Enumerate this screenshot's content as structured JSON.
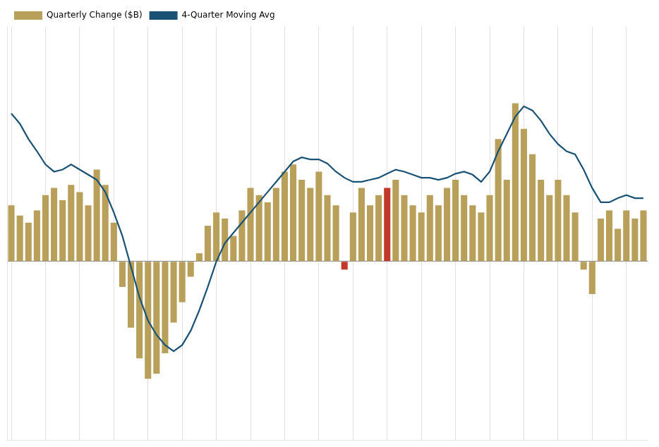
{
  "chart_data": {
    "type": "bar",
    "categories": [
      null,
      null,
      null,
      null,
      null,
      null,
      null,
      null,
      null,
      null,
      null,
      null,
      null,
      null,
      null,
      null,
      null,
      null,
      null,
      null,
      null,
      null,
      null,
      null,
      null,
      null,
      null,
      null,
      null,
      null,
      null,
      null,
      null,
      null,
      null,
      null,
      null,
      null,
      null,
      null,
      null,
      null,
      null,
      null,
      null,
      null,
      null,
      null,
      null,
      null,
      null,
      null,
      null,
      null,
      null,
      null,
      null,
      null,
      null,
      null,
      null,
      null,
      null,
      null,
      null,
      null,
      null,
      null,
      null,
      null,
      null,
      null,
      null,
      null,
      null
    ],
    "series": [
      {
        "name": "Quarterly Change ($B)",
        "type": "bar",
        "color": "#b8a05a",
        "colors": [
          "#b8a05a",
          "#b8a05a",
          "#b8a05a",
          "#b8a05a",
          "#b8a05a",
          "#b8a05a",
          "#b8a05a",
          "#b8a05a",
          "#b8a05a",
          "#b8a05a",
          "#b8a05a",
          "#b8a05a",
          "#b8a05a",
          "#b8a05a",
          "#b8a05a",
          "#b8a05a",
          "#b8a05a",
          "#b8a05a",
          "#b8a05a",
          "#b8a05a",
          "#b8a05a",
          "#b8a05a",
          "#b8a05a",
          "#b8a05a",
          "#b8a05a",
          "#b8a05a",
          "#b8a05a",
          "#b8a05a",
          "#b8a05a",
          "#b8a05a",
          "#b8a05a",
          "#b8a05a",
          "#b8a05a",
          "#b8a05a",
          "#b8a05a",
          "#b8a05a",
          "#b8a05a",
          "#b8a05a",
          "#b8a05a",
          "#c0392b",
          "#b8a05a",
          "#b8a05a",
          "#b8a05a",
          "#b8a05a",
          "#c0392b",
          "#b8a05a",
          "#b8a05a",
          "#b8a05a",
          "#b8a05a",
          "#b8a05a",
          "#b8a05a",
          "#b8a05a",
          "#b8a05a",
          "#b8a05a",
          "#b8a05a",
          "#b8a05a",
          "#b8a05a",
          "#b8a05a",
          "#b8a05a",
          "#b8a05a",
          "#b8a05a",
          "#b8a05a",
          "#b8a05a",
          "#b8a05a",
          "#b8a05a",
          "#b8a05a",
          "#b8a05a",
          "#b8a05a",
          "#b8a05a",
          "#b8a05a",
          "#b8a05a",
          "#b8a05a",
          "#b8a05a",
          "#b8a05a",
          "#b8a05a"
        ],
        "values": [
          55,
          45,
          38,
          50,
          65,
          72,
          60,
          75,
          68,
          55,
          90,
          75,
          38,
          -25,
          -65,
          -95,
          -115,
          -110,
          -90,
          -60,
          -40,
          -15,
          8,
          35,
          48,
          42,
          25,
          50,
          72,
          65,
          58,
          72,
          88,
          95,
          80,
          72,
          88,
          65,
          55,
          -8,
          48,
          72,
          55,
          65,
          72,
          80,
          65,
          55,
          48,
          65,
          55,
          72,
          80,
          65,
          55,
          48,
          65,
          120,
          80,
          155,
          130,
          105,
          80,
          65,
          80,
          65,
          48,
          -8,
          -32,
          42,
          50,
          32,
          50,
          42,
          50
        ]
      },
      {
        "name": "4-Quarter Moving Avg",
        "type": "line",
        "color": "#1a5276",
        "values": [
          145,
          135,
          120,
          108,
          95,
          88,
          90,
          95,
          90,
          85,
          80,
          68,
          48,
          25,
          -5,
          -35,
          -58,
          -72,
          -82,
          -88,
          -82,
          -68,
          -48,
          -25,
          0,
          18,
          28,
          38,
          48,
          58,
          68,
          78,
          88,
          98,
          102,
          100,
          100,
          96,
          88,
          82,
          78,
          78,
          80,
          82,
          86,
          90,
          88,
          85,
          82,
          82,
          80,
          82,
          86,
          88,
          85,
          78,
          88,
          108,
          125,
          142,
          152,
          148,
          138,
          125,
          115,
          108,
          105,
          90,
          72,
          58,
          58,
          62,
          65,
          62,
          62
        ]
      }
    ],
    "ylim": [
      -175,
      230
    ],
    "yticks": [
      0
    ],
    "grid": true,
    "legend": "upper left",
    "tick_labels": false
  }
}
